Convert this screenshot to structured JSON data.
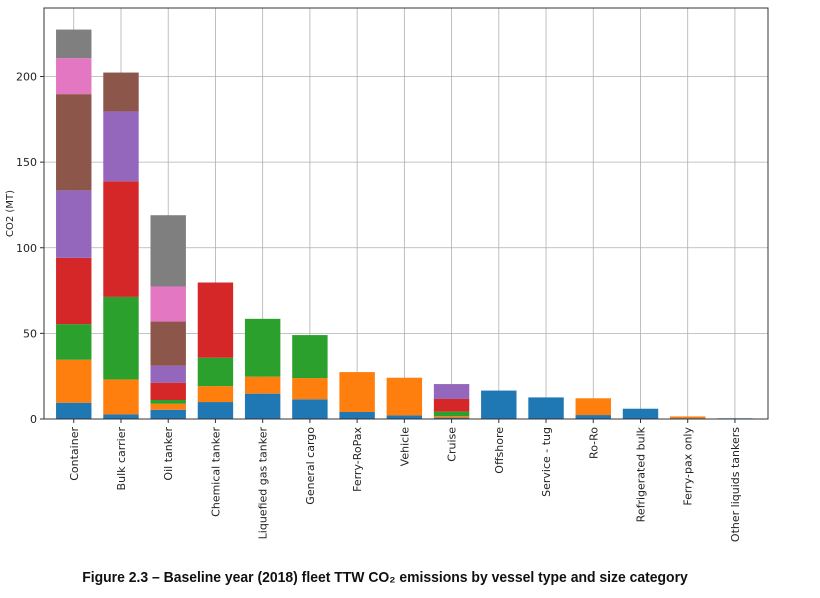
{
  "chart_data": {
    "type": "bar",
    "stacked": true,
    "title": "",
    "xlabel": "",
    "ylabel": "CO2 (MT)",
    "ylim": [
      0,
      240
    ],
    "yticks": [
      "0",
      "50",
      "100",
      "150",
      "200"
    ],
    "grid": true,
    "legend": "none",
    "categories": [
      "Container",
      "Bulk carrier",
      "Oil tanker",
      "Chemical tanker",
      "Liquefied gas tanker",
      "General cargo",
      "Ferry-RoPax",
      "Vehicle",
      "Cruise",
      "Offshore",
      "Service - tug",
      "Ro-Ro",
      "Refrigerated bulk",
      "Ferry-pax only",
      "Other liquids tankers"
    ],
    "series": [
      {
        "color": "#1f77b4",
        "values": [
          9.5,
          2.7,
          5.4,
          9.9,
          14.8,
          11.5,
          4.1,
          2.1,
          0.8,
          16.6,
          12.6,
          2.3,
          6.0,
          0.5,
          0.4
        ]
      },
      {
        "color": "#ff7f0e",
        "values": [
          25.1,
          20.4,
          3.5,
          9.3,
          9.9,
          12.4,
          23.3,
          22.0,
          0.9,
          0,
          0,
          9.8,
          0,
          1.0,
          0
        ]
      },
      {
        "color": "#2ca02c",
        "values": [
          20.8,
          48.2,
          2.2,
          16.6,
          33.8,
          25.1,
          0,
          0,
          2.6,
          0,
          0,
          0,
          0,
          0,
          0
        ]
      },
      {
        "color": "#d62728",
        "values": [
          38.7,
          67.5,
          10.1,
          43.9,
          0,
          0,
          0,
          0,
          7.4,
          0,
          0,
          0,
          0,
          0,
          0
        ]
      },
      {
        "color": "#9467bd",
        "values": [
          39.4,
          40.8,
          9.9,
          0,
          0,
          0,
          0,
          0,
          8.7,
          0,
          0,
          0,
          0,
          0,
          0
        ]
      },
      {
        "color": "#8c564b",
        "values": [
          56.2,
          22.7,
          25.8,
          0,
          0,
          0,
          0,
          0,
          0,
          0,
          0,
          0,
          0,
          0,
          0
        ]
      },
      {
        "color": "#e377c2",
        "values": [
          21.0,
          0,
          20.5,
          0,
          0,
          0,
          0,
          0,
          0,
          0,
          0,
          0,
          0,
          0,
          0
        ]
      },
      {
        "color": "#7f7f7f",
        "values": [
          16.7,
          0,
          41.6,
          0,
          0,
          0,
          0,
          0,
          0,
          0,
          0,
          0,
          0,
          0,
          0
        ]
      }
    ]
  },
  "caption": "Figure 2.3 – Baseline year (2018) fleet TTW CO₂ emissions by vessel type and size category"
}
